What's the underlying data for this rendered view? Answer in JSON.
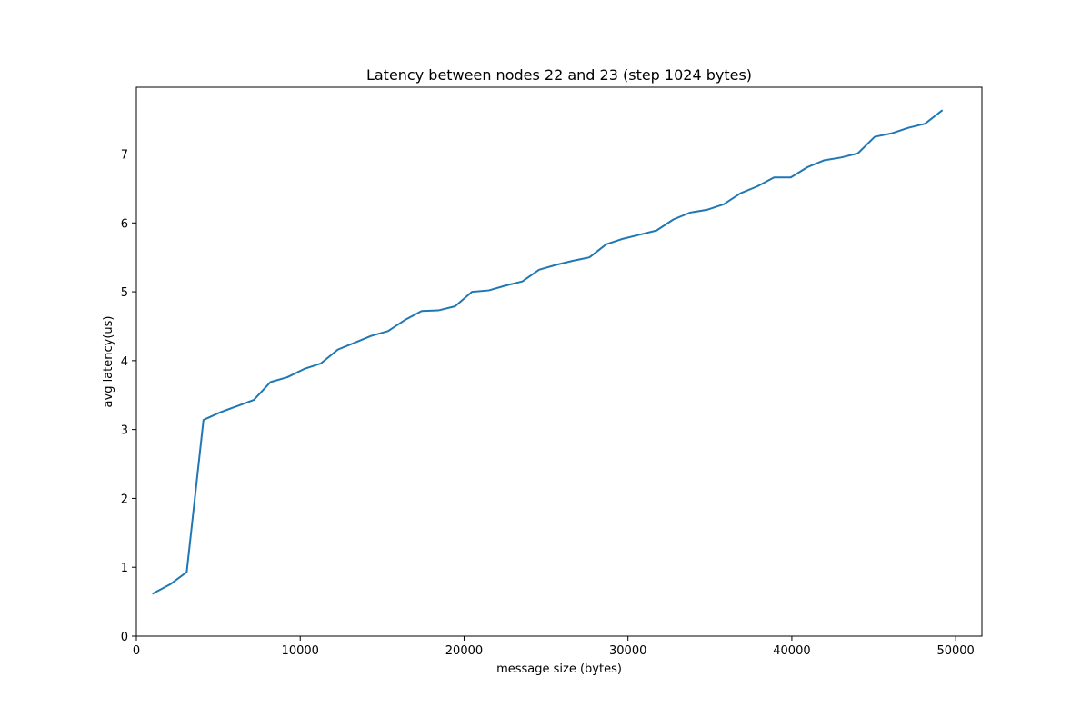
{
  "chart_data": {
    "type": "line",
    "title": "Latency between nodes 22 and 23 (step 1024 bytes)",
    "xlabel": "message size (bytes)",
    "ylabel": "avg latency(us)",
    "xlim": [
      0,
      51600
    ],
    "ylim": [
      0,
      7.97
    ],
    "xticks": [
      0,
      10000,
      20000,
      30000,
      40000,
      50000
    ],
    "yticks": [
      0,
      1,
      2,
      3,
      4,
      5,
      6,
      7
    ],
    "grid": false,
    "series": [
      {
        "color": "#1f77b4",
        "x": [
          1024,
          2048,
          3072,
          4096,
          5120,
          6144,
          7168,
          8192,
          9216,
          10240,
          11264,
          12288,
          13312,
          14336,
          15360,
          16384,
          17408,
          18432,
          19456,
          20480,
          21504,
          22528,
          23552,
          24576,
          25600,
          26624,
          27648,
          28672,
          29696,
          30720,
          31744,
          32768,
          33792,
          34816,
          35840,
          36864,
          37888,
          38912,
          39936,
          40960,
          41984,
          43008,
          44032,
          45056,
          46080,
          47104,
          48128,
          49152
        ],
        "y": [
          0.62,
          0.75,
          0.93,
          3.14,
          3.25,
          3.34,
          3.43,
          3.69,
          3.76,
          3.88,
          3.96,
          4.16,
          4.26,
          4.36,
          4.43,
          4.59,
          4.72,
          4.73,
          4.79,
          5.0,
          5.02,
          5.09,
          5.15,
          5.32,
          5.39,
          5.45,
          5.5,
          5.69,
          5.77,
          5.83,
          5.89,
          6.05,
          6.15,
          6.19,
          6.27,
          6.43,
          6.53,
          6.66,
          6.66,
          6.81,
          6.91,
          6.95,
          7.01,
          7.25,
          7.3,
          7.38,
          7.44,
          7.63
        ]
      }
    ]
  }
}
